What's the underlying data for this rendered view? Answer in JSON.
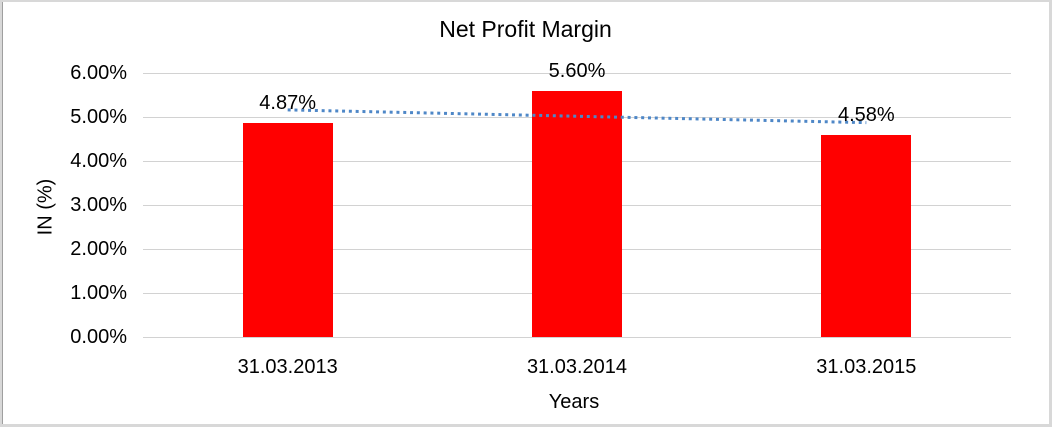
{
  "chart_data": {
    "type": "bar",
    "title": "Net Profit Margin",
    "categories": [
      "31.03.2013",
      "31.03.2014",
      "31.03.2015"
    ],
    "values": [
      4.87,
      5.6,
      4.58
    ],
    "data_labels": [
      "4.87%",
      "5.60%",
      "4.58%"
    ],
    "xlabel": "Years",
    "ylabel": "IN (%)",
    "ylim": [
      0,
      6
    ],
    "ytick_step": 1,
    "ytick_labels": [
      "0.00%",
      "1.00%",
      "2.00%",
      "3.00%",
      "4.00%",
      "5.00%",
      "6.00%"
    ],
    "grid": true,
    "legend": "none",
    "bar_color": "#ff0000",
    "gridline_color": "#d2d2d2",
    "text_color": "#000000",
    "frame_border_color": "#d8d8d8",
    "trendline": {
      "type": "linear",
      "style": "dotted",
      "color": "#4e87c7"
    }
  }
}
